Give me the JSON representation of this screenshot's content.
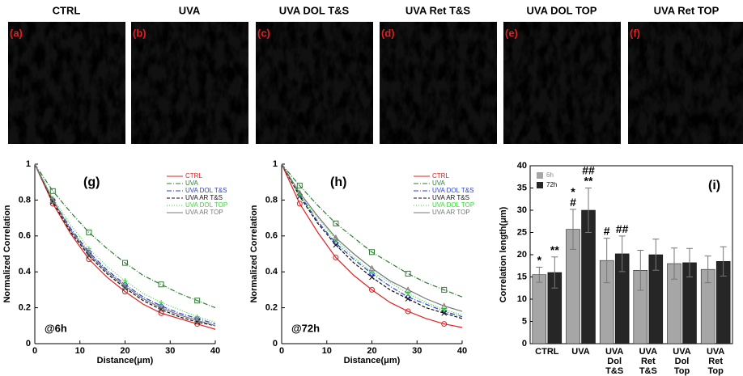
{
  "panels": [
    {
      "title": "CTRL",
      "label": "(a)"
    },
    {
      "title": "UVA",
      "label": "(b)"
    },
    {
      "title": "UVA DOL T&S",
      "label": "(c)"
    },
    {
      "title": "UVA Ret T&S",
      "label": "(d)"
    },
    {
      "title": "UVA DOL TOP",
      "label": "(e)"
    },
    {
      "title": "UVA Ret TOP",
      "label": "(f)"
    }
  ],
  "chart_data": [
    {
      "type": "line",
      "label": "(g)",
      "annotation": "@6h",
      "xlabel": "Distance(μm)",
      "ylabel": "Normalized Correlation",
      "x": [
        0,
        4,
        8,
        12,
        16,
        20,
        24,
        28,
        32,
        36,
        40
      ],
      "xlim": [
        0,
        40
      ],
      "xticks": [
        0,
        10,
        20,
        30,
        40
      ],
      "ylim": [
        0,
        1
      ],
      "yticks": [
        0,
        0.2,
        0.4,
        0.6,
        0.8,
        1
      ],
      "series": [
        {
          "name": "CTRL",
          "color": "#e02020",
          "dash": "solid",
          "marker": "circle",
          "values": [
            1,
            0.78,
            0.61,
            0.47,
            0.37,
            0.29,
            0.22,
            0.17,
            0.14,
            0.11,
            0.08
          ]
        },
        {
          "name": "UVA",
          "color": "#2e7d32",
          "dash": "dashdot",
          "marker": "square",
          "values": [
            1,
            0.85,
            0.73,
            0.62,
            0.53,
            0.45,
            0.38,
            0.33,
            0.28,
            0.24,
            0.2
          ]
        },
        {
          "name": "UVA DOL T&S",
          "color": "#2a3fd0",
          "dash": "dashdot",
          "marker": "diamond",
          "values": [
            1,
            0.8,
            0.64,
            0.51,
            0.41,
            0.33,
            0.26,
            0.21,
            0.17,
            0.14,
            0.11
          ]
        },
        {
          "name": "UVA AR T&S",
          "color": "#111111",
          "dash": "dashed",
          "marker": "x",
          "values": [
            1,
            0.79,
            0.62,
            0.49,
            0.39,
            0.31,
            0.24,
            0.19,
            0.15,
            0.12,
            0.1
          ]
        },
        {
          "name": "UVA DOL TOP",
          "color": "#33dd33",
          "dash": "dotted",
          "marker": "plus",
          "values": [
            1,
            0.81,
            0.66,
            0.53,
            0.43,
            0.35,
            0.28,
            0.23,
            0.19,
            0.15,
            0.12
          ]
        },
        {
          "name": "UVA AR TOP",
          "color": "#777777",
          "dash": "solid",
          "marker": "triangle",
          "values": [
            1,
            0.8,
            0.63,
            0.5,
            0.4,
            0.32,
            0.25,
            0.2,
            0.16,
            0.13,
            0.1
          ]
        }
      ]
    },
    {
      "type": "line",
      "label": "(h)",
      "annotation": "@72h",
      "xlabel": "Distance(μm)",
      "ylabel": "Normalized Correlation",
      "x": [
        0,
        4,
        8,
        12,
        16,
        20,
        24,
        28,
        32,
        36,
        40
      ],
      "xlim": [
        0,
        40
      ],
      "xticks": [
        0,
        10,
        20,
        30,
        40
      ],
      "ylim": [
        0,
        1
      ],
      "yticks": [
        0,
        0.2,
        0.4,
        0.6,
        0.8,
        1
      ],
      "series": [
        {
          "name": "CTRL",
          "color": "#e02020",
          "dash": "solid",
          "marker": "circle",
          "values": [
            1,
            0.78,
            0.62,
            0.48,
            0.38,
            0.3,
            0.23,
            0.18,
            0.14,
            0.11,
            0.09
          ]
        },
        {
          "name": "UVA",
          "color": "#2e7d32",
          "dash": "dashdot",
          "marker": "square",
          "values": [
            1,
            0.88,
            0.77,
            0.67,
            0.59,
            0.51,
            0.45,
            0.39,
            0.34,
            0.3,
            0.26
          ]
        },
        {
          "name": "UVA DOL T&S",
          "color": "#2a3fd0",
          "dash": "dashdot",
          "marker": "diamond",
          "values": [
            1,
            0.83,
            0.68,
            0.56,
            0.47,
            0.39,
            0.32,
            0.26,
            0.22,
            0.18,
            0.15
          ]
        },
        {
          "name": "UVA AR T&S",
          "color": "#111111",
          "dash": "dashed",
          "marker": "x",
          "values": [
            1,
            0.82,
            0.67,
            0.55,
            0.45,
            0.37,
            0.3,
            0.25,
            0.2,
            0.17,
            0.14
          ]
        },
        {
          "name": "UVA DOL TOP",
          "color": "#33dd33",
          "dash": "dotted",
          "marker": "plus",
          "values": [
            1,
            0.83,
            0.7,
            0.58,
            0.48,
            0.4,
            0.34,
            0.28,
            0.23,
            0.19,
            0.16
          ]
        },
        {
          "name": "UVA AR TOP",
          "color": "#777777",
          "dash": "solid",
          "marker": "triangle",
          "values": [
            1,
            0.84,
            0.71,
            0.59,
            0.5,
            0.42,
            0.35,
            0.3,
            0.25,
            0.21,
            0.18
          ]
        }
      ]
    },
    {
      "type": "bar",
      "label": "(i)",
      "ylabel": "Correlation length(μm)",
      "categories": [
        "CTRL",
        "UVA",
        "UVA Dol T&S",
        "UVA Ret T&S",
        "UVA Dol Top",
        "UVA Ret Top"
      ],
      "ylim": [
        0,
        40
      ],
      "yticks": [
        0,
        5,
        10,
        15,
        20,
        25,
        30,
        35,
        40
      ],
      "series": [
        {
          "name": "6h",
          "color": "#a6a6a6",
          "values": [
            15.5,
            25.7,
            18.7,
            16.5,
            18,
            16.7
          ],
          "errors": [
            1.7,
            4.5,
            5,
            4.5,
            3.5,
            3
          ],
          "significance": [
            "*",
            "* #",
            "#",
            null,
            null,
            null
          ]
        },
        {
          "name": "72h",
          "color": "#262626",
          "values": [
            16,
            30,
            20.2,
            20,
            18.2,
            18.5
          ],
          "errors": [
            3.5,
            5,
            4,
            3.5,
            3.2,
            3.3
          ],
          "significance": [
            "**",
            "## **",
            "##",
            null,
            null,
            null
          ]
        }
      ]
    }
  ]
}
